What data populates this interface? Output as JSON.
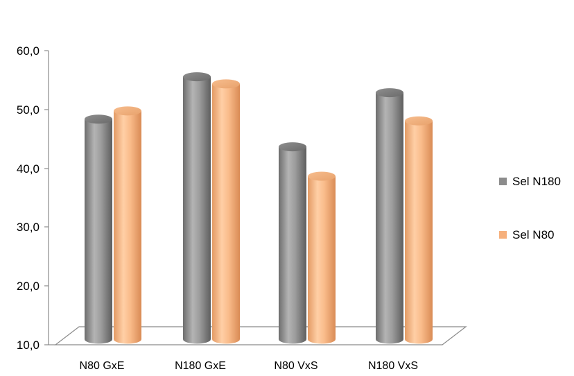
{
  "chart_data": {
    "type": "bar",
    "title": "",
    "xlabel": "",
    "ylabel": "",
    "ylim": [
      10,
      60
    ],
    "yticks": [
      "60,0",
      "50,0",
      "40,0",
      "30,0",
      "20,0",
      "10,0"
    ],
    "categories": [
      "N80 GxE",
      "N180 GxE",
      "N80 VxS",
      "N180 VxS"
    ],
    "series": [
      {
        "name": "Sel N180",
        "values": [
          49.3,
          56.5,
          44.6,
          53.8
        ],
        "color": "#8c8c8c"
      },
      {
        "name": "Sel N80",
        "values": [
          50.7,
          55.3,
          39.6,
          49.0
        ],
        "color": "#f6b07c"
      }
    ],
    "legend_position": "right",
    "grid": false
  }
}
